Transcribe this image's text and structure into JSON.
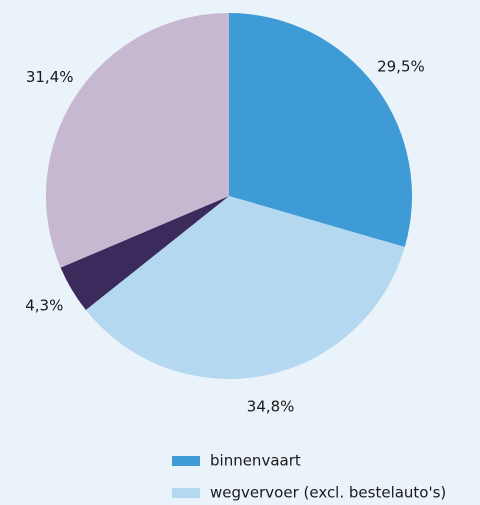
{
  "chart_data": {
    "type": "pie",
    "categories": [
      "binnenvaart",
      "wegvervoer (excl. bestelauto's)",
      null,
      null
    ],
    "values": [
      29.5,
      34.8,
      4.3,
      31.4
    ],
    "value_labels": [
      "29,5%",
      "34,8%",
      "4,3%",
      "31,4%"
    ],
    "colors": [
      "#3f9bd5",
      "#b3d8f0",
      "#3b2a5c",
      "#c7b8d2"
    ]
  }
}
